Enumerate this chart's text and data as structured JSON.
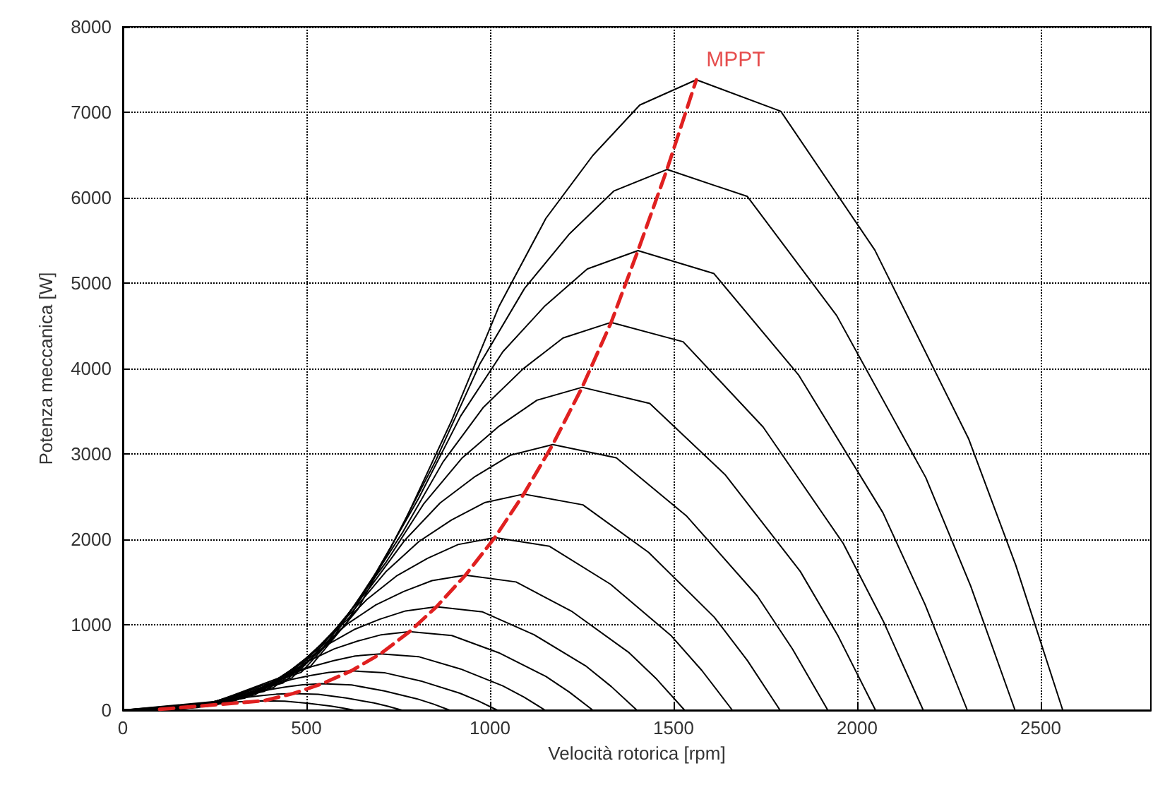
{
  "chart_data": {
    "type": "line",
    "xlabel": "Velocità rotorica [rpm]",
    "ylabel": "Potenza meccanica [W]",
    "xlim": [
      0,
      2800
    ],
    "xticks": [
      0,
      500,
      1000,
      1500,
      2000,
      2500
    ],
    "ylim": [
      0,
      8000
    ],
    "yticks": [
      0,
      1000,
      2000,
      3000,
      4000,
      5000,
      6000,
      7000,
      8000
    ],
    "grid": true,
    "marker": "none",
    "line_style": "solid",
    "annotations": [
      {
        "text": "MPPT",
        "x": 1562,
        "y": 7380
      }
    ],
    "series": [
      {
        "color": "#000000",
        "x": [
          0,
          256,
          512,
          640,
          768,
          896,
          1024,
          1152,
          1280,
          1408,
          1562,
          1792,
          2048,
          2304,
          2432,
          2560
        ],
        "values": [
          0,
          103,
          517,
          1181,
          2214,
          3395,
          4723,
          5756,
          6494,
          7085,
          7380,
          7011,
          5387,
          3173,
          1697,
          0
        ]
      },
      {
        "color": "#000000",
        "x": [
          0,
          243,
          486,
          608,
          729,
          851,
          972,
          1094,
          1215,
          1337,
          1482,
          1701,
          1944,
          2187,
          2309,
          2430
        ],
        "values": [
          0,
          89,
          443,
          1013,
          1899,
          2912,
          4051,
          4937,
          5570,
          6077,
          6330,
          6014,
          4621,
          2722,
          1456,
          0
        ]
      },
      {
        "color": "#000000",
        "x": [
          0,
          230,
          460,
          575,
          690,
          805,
          920,
          1035,
          1150,
          1265,
          1403,
          1610,
          1840,
          2070,
          2185,
          2300
        ],
        "values": [
          0,
          75,
          377,
          861,
          1614,
          2475,
          3443,
          4196,
          4734,
          5165,
          5380,
          5111,
          3927,
          2313,
          1237,
          0
        ]
      },
      {
        "color": "#000000",
        "x": [
          0,
          218,
          436,
          545,
          654,
          763,
          872,
          981,
          1090,
          1199,
          1330,
          1526,
          1744,
          1962,
          2071,
          2180
        ],
        "values": [
          0,
          64,
          318,
          726,
          1362,
          2088,
          2906,
          3541,
          3995,
          4358,
          4540,
          4313,
          3314,
          1952,
          1044,
          0
        ]
      },
      {
        "color": "#000000",
        "x": [
          0,
          205,
          410,
          513,
          615,
          718,
          820,
          923,
          1025,
          1128,
          1251,
          1435,
          1640,
          1845,
          1948,
          2050
        ],
        "values": [
          0,
          53,
          265,
          605,
          1134,
          1739,
          2419,
          2948,
          3326,
          3629,
          3780,
          3591,
          2759,
          1625,
          869,
          0
        ]
      },
      {
        "color": "#000000",
        "x": [
          0,
          192,
          384,
          480,
          576,
          672,
          768,
          864,
          960,
          1056,
          1171,
          1344,
          1536,
          1728,
          1824,
          1920
        ],
        "values": [
          0,
          44,
          218,
          498,
          933,
          1431,
          1990,
          2426,
          2737,
          2986,
          3110,
          2955,
          2270,
          1337,
          715,
          0
        ]
      },
      {
        "color": "#000000",
        "x": [
          0,
          179,
          358,
          448,
          537,
          627,
          716,
          806,
          895,
          985,
          1092,
          1253,
          1432,
          1611,
          1701,
          1790
        ],
        "values": [
          0,
          35,
          177,
          405,
          759,
          1164,
          1619,
          1973,
          2226,
          2429,
          2530,
          2404,
          1847,
          1088,
          582,
          0
        ]
      },
      {
        "color": "#000000",
        "x": [
          0,
          166,
          332,
          415,
          498,
          581,
          664,
          747,
          830,
          913,
          1013,
          1162,
          1328,
          1494,
          1577,
          1660
        ],
        "values": [
          0,
          28,
          141,
          323,
          606,
          929,
          1293,
          1576,
          1778,
          1939,
          2020,
          1919,
          1475,
          869,
          465,
          0
        ]
      },
      {
        "color": "#000000",
        "x": [
          0,
          153,
          306,
          383,
          459,
          536,
          612,
          689,
          765,
          842,
          933,
          1071,
          1224,
          1377,
          1454,
          1530
        ],
        "values": [
          0,
          22,
          111,
          253,
          474,
          727,
          1011,
          1232,
          1390,
          1517,
          1580,
          1501,
          1153,
          679,
          363,
          0
        ]
      },
      {
        "color": "#000000",
        "x": [
          0,
          140,
          280,
          350,
          420,
          490,
          560,
          630,
          700,
          770,
          854,
          980,
          1120,
          1260,
          1330,
          1400
        ],
        "values": [
          0,
          17,
          85,
          194,
          363,
          557,
          774,
          944,
          1065,
          1162,
          1210,
          1150,
          883,
          520,
          278,
          0
        ]
      },
      {
        "color": "#000000",
        "x": [
          0,
          128,
          256,
          320,
          384,
          448,
          512,
          576,
          640,
          704,
          781,
          896,
          1024,
          1152,
          1216,
          1280
        ],
        "values": [
          0,
          13,
          64,
          147,
          276,
          423,
          589,
          718,
          810,
          883,
          920,
          874,
          672,
          396,
          212,
          0
        ]
      },
      {
        "color": "#000000",
        "x": [
          0,
          115,
          230,
          288,
          345,
          403,
          460,
          518,
          575,
          633,
          702,
          805,
          920,
          1035,
          1093,
          1150
        ],
        "values": [
          0,
          9,
          46,
          106,
          198,
          304,
          422,
          515,
          581,
          634,
          660,
          627,
          482,
          284,
          152,
          0
        ]
      },
      {
        "color": "#000000",
        "x": [
          0,
          102,
          204,
          255,
          306,
          357,
          408,
          459,
          510,
          561,
          622,
          714,
          816,
          918,
          969,
          1020
        ],
        "values": [
          0,
          6,
          32,
          74,
          138,
          212,
          294,
          359,
          405,
          442,
          460,
          437,
          336,
          198,
          106,
          0
        ]
      },
      {
        "color": "#000000",
        "x": [
          0,
          89,
          178,
          223,
          267,
          312,
          356,
          401,
          445,
          490,
          543,
          623,
          712,
          801,
          846,
          890
        ],
        "values": [
          0,
          4,
          22,
          50,
          93,
          143,
          198,
          242,
          273,
          298,
          310,
          295,
          226,
          133,
          71,
          0
        ]
      },
      {
        "color": "#000000",
        "x": [
          0,
          76,
          152,
          190,
          228,
          266,
          304,
          342,
          380,
          418,
          464,
          532,
          608,
          684,
          722,
          760
        ],
        "values": [
          0,
          3,
          14,
          31,
          59,
          90,
          125,
          152,
          172,
          187,
          195,
          185,
          142,
          84,
          45,
          0
        ]
      },
      {
        "color": "#000000",
        "x": [
          0,
          63,
          126,
          158,
          189,
          221,
          252,
          284,
          315,
          347,
          384,
          441,
          504,
          567,
          599,
          630
        ],
        "values": [
          0,
          2,
          8,
          18,
          33,
          51,
          70,
          86,
          97,
          106,
          110,
          105,
          80,
          47,
          25,
          0
        ]
      },
      {
        "color": "#e02020",
        "line_style": "dashed",
        "x": [
          100,
          384,
          464,
          543,
          622,
          702,
          781,
          854,
          933,
          1013,
          1092,
          1171,
          1251,
          1330,
          1403,
          1482,
          1562
        ],
        "values": [
          10,
          110,
          195,
          310,
          460,
          660,
          920,
          1210,
          1580,
          2020,
          2530,
          3110,
          3780,
          4540,
          5380,
          6330,
          7380
        ]
      }
    ]
  }
}
